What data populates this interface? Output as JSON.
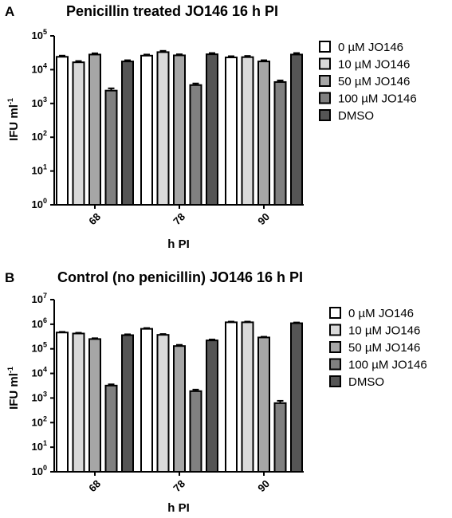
{
  "chart_data": [
    {
      "panel": "A",
      "type": "bar",
      "title": "Penicillin treated JO146 16 h PI",
      "xlabel": "h PI",
      "ylabel": "IFU ml",
      "ylabel_sup": "-1",
      "yscale": "log",
      "ylim": [
        1,
        100000
      ],
      "yticks": [
        {
          "base": "10",
          "exp": "0"
        },
        {
          "base": "10",
          "exp": "1"
        },
        {
          "base": "10",
          "exp": "2"
        },
        {
          "base": "10",
          "exp": "3"
        },
        {
          "base": "10",
          "exp": "4"
        },
        {
          "base": "10",
          "exp": "5"
        }
      ],
      "categories": [
        "68",
        "78",
        "90"
      ],
      "series": [
        {
          "name": "0 µM JO146",
          "color": "#ffffff",
          "values": [
            24000,
            26000,
            23000
          ],
          "errors": [
            2000,
            2000,
            2000
          ]
        },
        {
          "name": "10 µM JO146",
          "color": "#d9d9d9",
          "values": [
            16500,
            33000,
            23500
          ],
          "errors": [
            1500,
            3000,
            2000
          ]
        },
        {
          "name": "50 µM JO146",
          "color": "#a6a6a6",
          "values": [
            28000,
            26500,
            17500
          ],
          "errors": [
            2500,
            2000,
            1500
          ]
        },
        {
          "name": "100 µM JO146",
          "color": "#808080",
          "values": [
            2400,
            3500,
            4300
          ],
          "errors": [
            400,
            400,
            500
          ]
        },
        {
          "name": "DMSO",
          "color": "#555555",
          "values": [
            17500,
            28500,
            28000
          ],
          "errors": [
            1500,
            2500,
            3000
          ]
        }
      ],
      "legend_position": "right"
    },
    {
      "panel": "B",
      "type": "bar",
      "title": "Control (no penicillin) JO146 16 h PI",
      "xlabel": "h PI",
      "ylabel": "IFU ml",
      "ylabel_sup": "-1",
      "yscale": "log",
      "ylim": [
        1,
        10000000
      ],
      "yticks": [
        {
          "base": "10",
          "exp": "0"
        },
        {
          "base": "10",
          "exp": "1"
        },
        {
          "base": "10",
          "exp": "2"
        },
        {
          "base": "10",
          "exp": "3"
        },
        {
          "base": "10",
          "exp": "4"
        },
        {
          "base": "10",
          "exp": "5"
        },
        {
          "base": "10",
          "exp": "6"
        },
        {
          "base": "10",
          "exp": "7"
        }
      ],
      "categories": [
        "68",
        "78",
        "90"
      ],
      "series": [
        {
          "name": "0 µM JO146",
          "color": "#ffffff",
          "values": [
            460000,
            650000,
            1200000
          ],
          "errors": [
            30000,
            50000,
            80000
          ]
        },
        {
          "name": "10 µM JO146",
          "color": "#d9d9d9",
          "values": [
            420000,
            370000,
            1200000
          ],
          "errors": [
            30000,
            30000,
            80000
          ]
        },
        {
          "name": "50 µM JO146",
          "color": "#a6a6a6",
          "values": [
            250000,
            130000,
            290000
          ],
          "errors": [
            20000,
            15000,
            20000
          ]
        },
        {
          "name": "100 µM JO146",
          "color": "#808080",
          "values": [
            3200,
            1900,
            620
          ],
          "errors": [
            400,
            300,
            150
          ]
        },
        {
          "name": "DMSO",
          "color": "#555555",
          "values": [
            360000,
            220000,
            1100000
          ],
          "errors": [
            30000,
            20000,
            80000
          ]
        }
      ],
      "legend_position": "right"
    }
  ]
}
